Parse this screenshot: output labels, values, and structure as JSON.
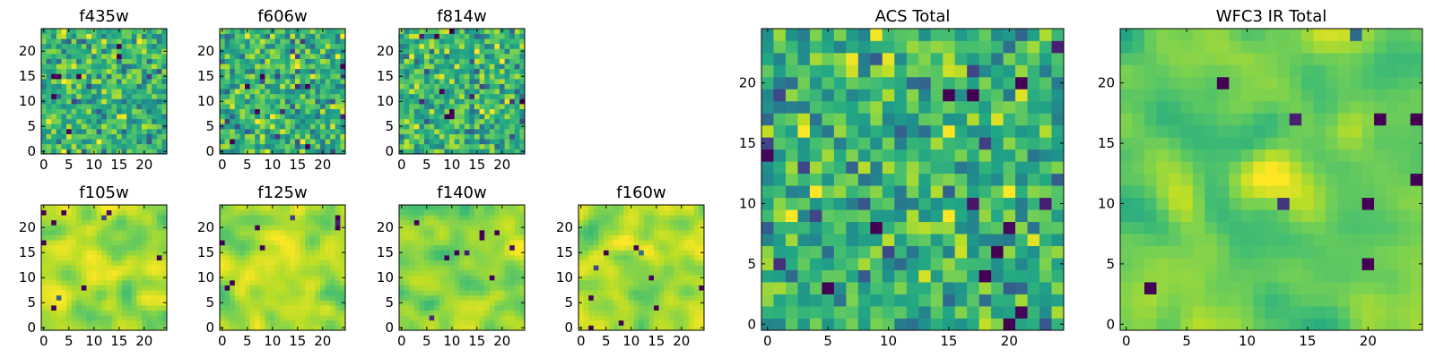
{
  "figure": {
    "description_type": "multi-panel image grid",
    "colormap": "viridis"
  },
  "chart_data": [
    {
      "type": "heatmap",
      "title": "f435w",
      "xlim": [
        0,
        24
      ],
      "ylim": [
        0,
        24
      ],
      "xticks": [
        "0",
        "5",
        "10",
        "15",
        "20"
      ],
      "yticks": [
        "0",
        "5",
        "10",
        "15",
        "20"
      ],
      "texture": "noise",
      "seed": 11
    },
    {
      "type": "heatmap",
      "title": "f606w",
      "xlim": [
        0,
        24
      ],
      "ylim": [
        0,
        24
      ],
      "xticks": [
        "0",
        "5",
        "10",
        "15",
        "20"
      ],
      "yticks": [
        "0",
        "5",
        "10",
        "15",
        "20"
      ],
      "texture": "noise",
      "seed": 23
    },
    {
      "type": "heatmap",
      "title": "f814w",
      "xlim": [
        0,
        24
      ],
      "ylim": [
        0,
        24
      ],
      "xticks": [
        "0",
        "5",
        "10",
        "15",
        "20"
      ],
      "yticks": [
        "0",
        "5",
        "10",
        "15",
        "20"
      ],
      "texture": "noise",
      "seed": 37
    },
    {
      "type": "heatmap",
      "title": "f105w",
      "xlim": [
        0,
        24
      ],
      "ylim": [
        0,
        24
      ],
      "xticks": [
        "0",
        "5",
        "10",
        "15",
        "20"
      ],
      "yticks": [
        "0",
        "5",
        "10",
        "15",
        "20"
      ],
      "texture": "smooth",
      "seed": 41
    },
    {
      "type": "heatmap",
      "title": "f125w",
      "xlim": [
        0,
        24
      ],
      "ylim": [
        0,
        24
      ],
      "xticks": [
        "0",
        "5",
        "10",
        "15",
        "20"
      ],
      "yticks": [
        "0",
        "5",
        "10",
        "15",
        "20"
      ],
      "texture": "smooth",
      "seed": 53
    },
    {
      "type": "heatmap",
      "title": "f140w",
      "xlim": [
        0,
        24
      ],
      "ylim": [
        0,
        24
      ],
      "xticks": [
        "0",
        "5",
        "10",
        "15",
        "20"
      ],
      "yticks": [
        "0",
        "5",
        "10",
        "15",
        "20"
      ],
      "texture": "smooth",
      "seed": 67
    },
    {
      "type": "heatmap",
      "title": "f160w",
      "xlim": [
        0,
        24
      ],
      "ylim": [
        0,
        24
      ],
      "xticks": [
        "0",
        "5",
        "10",
        "15",
        "20"
      ],
      "yticks": [
        "0",
        "5",
        "10",
        "15",
        "20"
      ],
      "texture": "smooth",
      "seed": 79
    },
    {
      "type": "heatmap",
      "title": "ACS Total",
      "xlim": [
        0,
        24
      ],
      "ylim": [
        0,
        24
      ],
      "xticks": [
        "0",
        "5",
        "10",
        "15",
        "20"
      ],
      "yticks": [
        "0",
        "5",
        "10",
        "15",
        "20"
      ],
      "texture": "noise",
      "seed": 83
    },
    {
      "type": "heatmap",
      "title": "WFC3 IR Total",
      "xlim": [
        0,
        24
      ],
      "ylim": [
        0,
        24
      ],
      "xticks": [
        "0",
        "5",
        "10",
        "15",
        "20"
      ],
      "yticks": [
        "0",
        "5",
        "10",
        "15",
        "20"
      ],
      "texture": "smooth-source",
      "seed": 97,
      "source_center": [
        12,
        12
      ]
    }
  ]
}
